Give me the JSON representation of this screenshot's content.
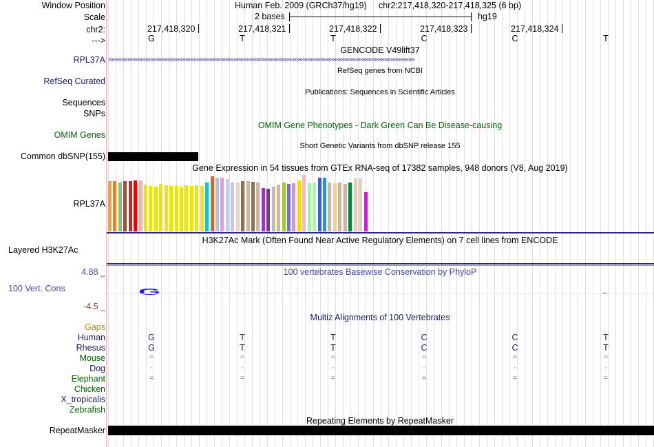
{
  "header": {
    "window_position_label": "Window Position",
    "assembly": "Human Feb. 2009 (GRCh37/hg19)",
    "position": "chr2:217,418,320-217,418,325 (6 bp)",
    "scale_label": "Scale",
    "scale_text": "2 bases",
    "scale_db": "hg19",
    "chrom_label": "chr2:",
    "strand_label": "--->",
    "coords": [
      "217,418,320",
      "217,418,321",
      "217,418,322",
      "217,418,323",
      "217,418,324"
    ],
    "bases": [
      "G",
      "T",
      "T",
      "C",
      "C",
      "T"
    ]
  },
  "tracks": {
    "gencode_title": "GENCODE V49lift37",
    "gencode_gene": "RPL37A",
    "refseq_title": "RefSeq genes from NCBI",
    "refseq_label": "RefSeq Curated",
    "publications_title": "Publications: Sequences in Scientific Articles",
    "sequences_label": "Sequences",
    "snps_label": "SNPs",
    "omim_title": "OMIM Gene Phenotypes - Dark Green Can Be Disease-causing",
    "omim_label": "OMIM Genes",
    "dbsnp_title": "Short Genetic Variants from dbSNP release 155",
    "dbsnp_label": "Common dbSNP(155)",
    "gtex_title": "Gene Expression in 54 tissues from GTEx RNA-seq of 17382 samples, 948 donors (V8, Aug 2019)",
    "gtex_gene": "RPL37A",
    "h3k27ac_title": "H3K27Ac Mark (Often Found Near Active Regulatory Elements) on 7 cell lines from ENCODE",
    "h3k27ac_label": "Layered H3K27Ac",
    "phylop_title": "100 vertebrates Basewise Conservation by PhyloP",
    "phylop_max": "4.88 _",
    "phylop_label": "100 Vert. Cons",
    "phylop_min": "-4.5 _",
    "phylop_glyph": "G",
    "multiz_title": "Multiz Alignments of 100 Vertebrates",
    "gaps_label": "Gaps",
    "repeat_title": "Repeating Elements by RepeatMasker",
    "repeat_label": "RepeatMasker"
  },
  "species": [
    {
      "name": "Human",
      "bases": [
        "G",
        "T",
        "T",
        "C",
        "C",
        "T"
      ]
    },
    {
      "name": "Rhesus",
      "bases": [
        "G",
        "T",
        "T",
        "C",
        "C",
        "T"
      ]
    },
    {
      "name": "Mouse",
      "bases": [
        "=",
        "=",
        "=",
        "=",
        "=",
        "="
      ]
    },
    {
      "name": "Dog",
      "bases": [
        "-",
        "-",
        "-",
        "-",
        "-",
        "-"
      ]
    },
    {
      "name": "Elephant",
      "bases": [
        "=",
        "=",
        "=",
        "=",
        "=",
        "="
      ]
    },
    {
      "name": "Chicken",
      "bases": []
    },
    {
      "name": "X_tropicalis",
      "bases": []
    },
    {
      "name": "Zebrafish",
      "bases": []
    }
  ],
  "gtex_bars": [
    {
      "color": "#f2a03c",
      "value": 0.87
    },
    {
      "color": "#e6801e",
      "value": 0.87
    },
    {
      "color": "#8fbc8f",
      "value": 0.85
    },
    {
      "color": "#a0522d",
      "value": 0.87
    },
    {
      "color": "#cd2626",
      "value": 0.87
    },
    {
      "color": "#ee0000",
      "value": 0.88
    },
    {
      "color": "#eeb4b4",
      "value": 0.88
    },
    {
      "color": "#e8e800",
      "value": 0.81
    },
    {
      "color": "#e8e800",
      "value": 0.79
    },
    {
      "color": "#e8e800",
      "value": 0.77
    },
    {
      "color": "#e8e800",
      "value": 0.82
    },
    {
      "color": "#e8e800",
      "value": 0.8
    },
    {
      "color": "#e8e800",
      "value": 0.78
    },
    {
      "color": "#e8e800",
      "value": 0.79
    },
    {
      "color": "#e8e800",
      "value": 0.77
    },
    {
      "color": "#e8e800",
      "value": 0.8
    },
    {
      "color": "#e8e800",
      "value": 0.78
    },
    {
      "color": "#e8e800",
      "value": 0.8
    },
    {
      "color": "#e8e800",
      "value": 0.78
    },
    {
      "color": "#00cdcd",
      "value": 0.85
    },
    {
      "color": "#cd6839",
      "value": 0.95
    },
    {
      "color": "#b0c4de",
      "value": 0.93
    },
    {
      "color": "#dda0dd",
      "value": 0.93
    },
    {
      "color": "#bcd2ee",
      "value": 0.91
    },
    {
      "color": "#d8bfd8",
      "value": 0.85
    },
    {
      "color": "#eecfc7",
      "value": 0.85
    },
    {
      "color": "#8b7355",
      "value": 0.87
    },
    {
      "color": "#cdb79e",
      "value": 0.87
    },
    {
      "color": "#8b7355",
      "value": 0.86
    },
    {
      "color": "#cdb79e",
      "value": 0.85
    },
    {
      "color": "#9a32cd",
      "value": 0.75
    },
    {
      "color": "#7a378b",
      "value": 0.74
    },
    {
      "color": "#cdb79e",
      "value": 0.77
    },
    {
      "color": "#cdb79e",
      "value": 0.81
    },
    {
      "color": "#9acd32",
      "value": 0.84
    },
    {
      "color": "#7a67ee",
      "value": 0.82
    },
    {
      "color": "#cd96cd",
      "value": 0.83
    },
    {
      "color": "#ffd700",
      "value": 0.88
    },
    {
      "color": "#ffb6c1",
      "value": 0.98
    },
    {
      "color": "#98fb98",
      "value": 0.83
    },
    {
      "color": "#b4eeb4",
      "value": 0.85
    },
    {
      "color": "#3a5fcd",
      "value": 0.93
    },
    {
      "color": "#1e90ff",
      "value": 0.93
    },
    {
      "color": "#cdb79e",
      "value": 0.85
    },
    {
      "color": "#eecfa1",
      "value": 0.83
    },
    {
      "color": "#d2b48c",
      "value": 0.84
    },
    {
      "color": "#cdb79e",
      "value": 0.82
    },
    {
      "color": "#008b45",
      "value": 0.84
    },
    {
      "color": "#eecbad",
      "value": 0.92
    },
    {
      "color": "#e8d0c0",
      "value": 0.92
    },
    {
      "color": "#ff00ff",
      "value": 0.68
    }
  ]
}
